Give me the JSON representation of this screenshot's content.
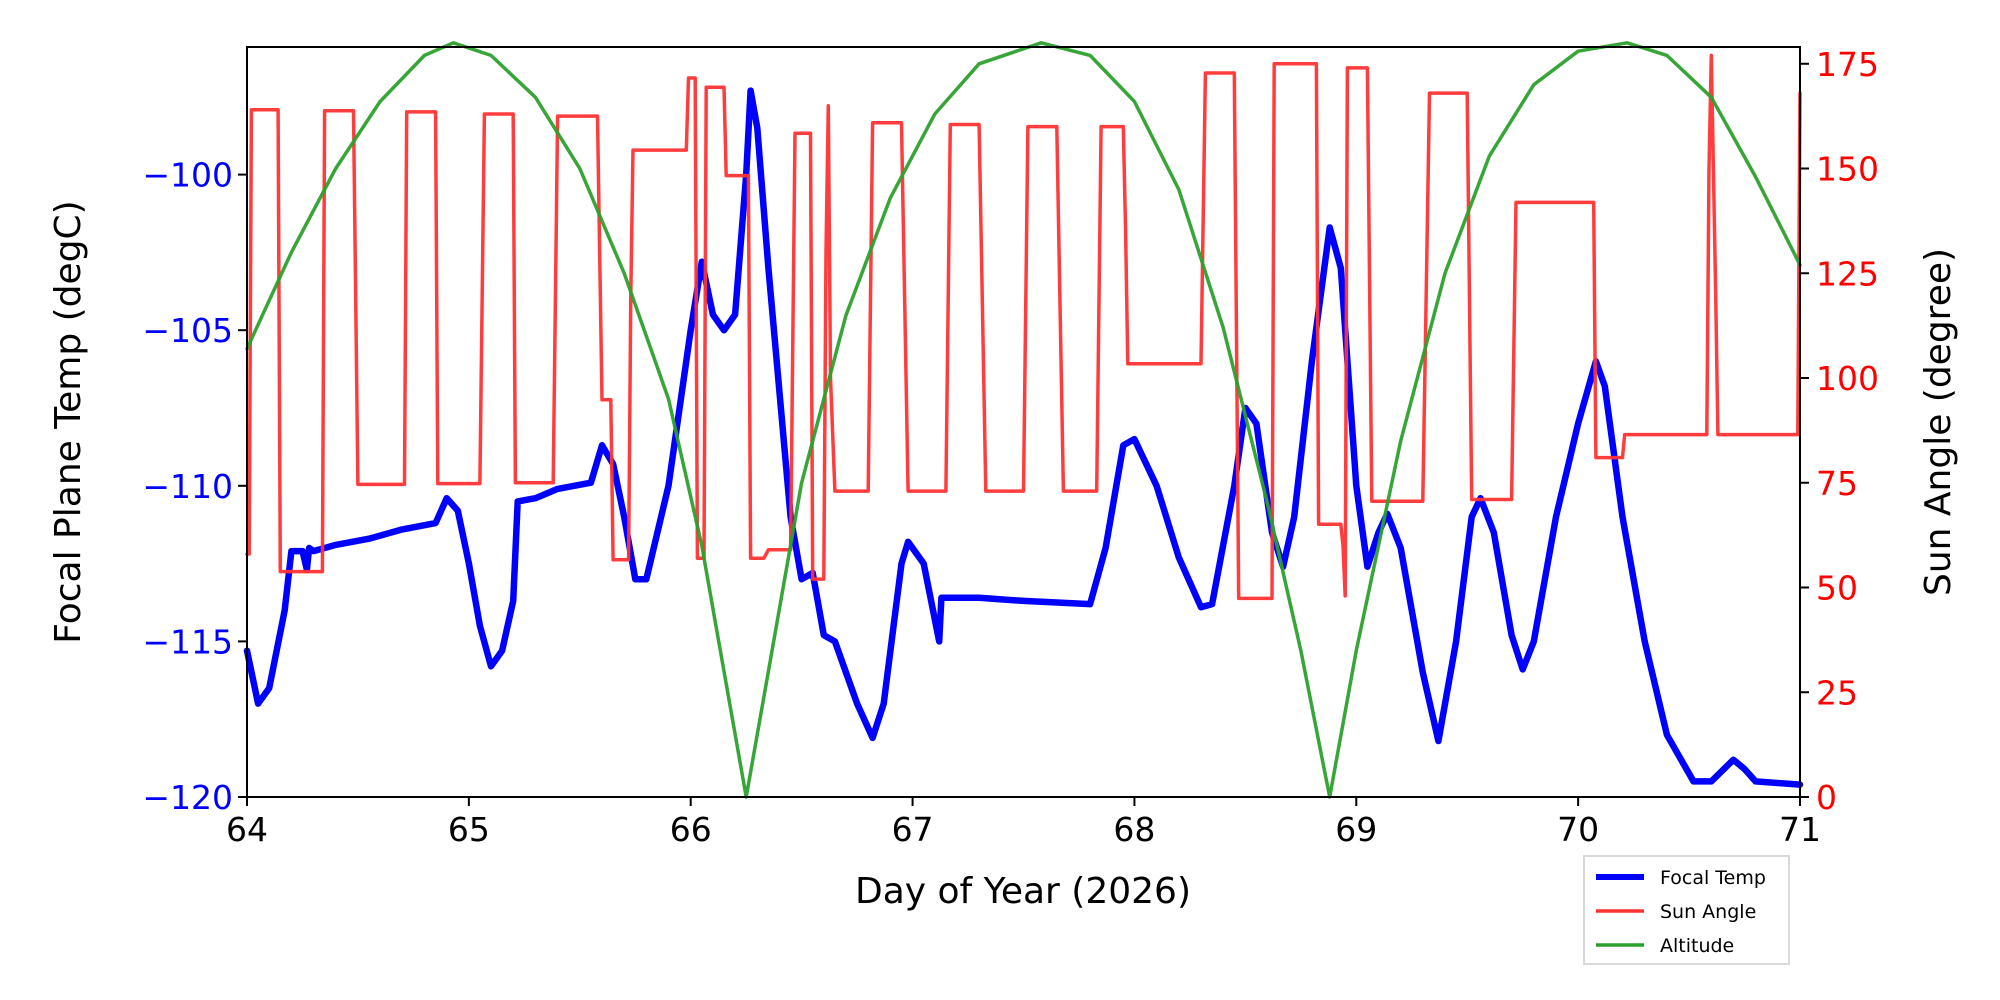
{
  "chart_data": {
    "type": "line",
    "xlabel": "Day of Year (2026)",
    "ylabel_left": "Focal Plane Temp (degC)",
    "ylabel_right": "Sun Angle (degree)",
    "xlim": [
      64,
      71
    ],
    "ylim_left": [
      -120,
      -95.9
    ],
    "ylim_right": [
      0,
      179
    ],
    "xticks": [
      "64",
      "65",
      "66",
      "67",
      "68",
      "69",
      "70",
      "71"
    ],
    "yticks_left": [
      "-120",
      "-115",
      "-110",
      "-105",
      "-100"
    ],
    "yticks_right": [
      "0",
      "25",
      "50",
      "75",
      "100",
      "125",
      "150",
      "175"
    ],
    "grid": false,
    "legend_placement": "below-right",
    "colors": {
      "left_axis": "#0000ff",
      "right_axis": "#ff0000"
    },
    "series": [
      {
        "name": "Focal Temp",
        "axis": "left",
        "color": "#0000ff",
        "x": [
          64.0,
          64.05,
          64.1,
          64.17,
          64.2,
          64.25,
          64.27,
          64.28,
          64.3,
          64.4,
          64.55,
          64.7,
          64.85,
          64.9,
          64.95,
          65.0,
          65.05,
          65.1,
          65.15,
          65.2,
          65.22,
          65.3,
          65.4,
          65.55,
          65.6,
          65.65,
          65.7,
          65.75,
          65.8,
          65.9,
          66.0,
          66.05,
          66.1,
          66.15,
          66.2,
          66.25,
          66.27,
          66.3,
          66.35,
          66.45,
          66.5,
          66.55,
          66.6,
          66.65,
          66.75,
          66.82,
          66.87,
          66.95,
          66.98,
          67.05,
          67.12,
          67.13,
          67.3,
          67.5,
          67.8,
          67.87,
          67.95,
          68.0,
          68.1,
          68.2,
          68.3,
          68.35,
          68.45,
          68.5,
          68.55,
          68.62,
          68.67,
          68.72,
          68.8,
          68.88,
          68.93,
          69.0,
          69.05,
          69.1,
          69.14,
          69.2,
          69.3,
          69.37,
          69.45,
          69.52,
          69.56,
          69.62,
          69.7,
          69.75,
          69.8,
          69.9,
          70.0,
          70.08,
          70.12,
          70.2,
          70.3,
          70.4,
          70.52,
          70.6,
          70.7,
          70.75,
          70.8,
          71.0
        ],
        "y": [
          -115.3,
          -117.0,
          -116.5,
          -114,
          -112.1,
          -112.1,
          -112.7,
          -112.0,
          -112.1,
          -111.9,
          -111.7,
          -111.4,
          -111.2,
          -110.4,
          -110.8,
          -112.5,
          -114.5,
          -115.8,
          -115.3,
          -113.7,
          -110.5,
          -110.4,
          -110.1,
          -109.9,
          -108.7,
          -109.3,
          -111,
          -113,
          -113,
          -110,
          -105,
          -102.8,
          -104.5,
          -105,
          -104.5,
          -100,
          -97.3,
          -98.5,
          -103,
          -111,
          -113,
          -112.8,
          -114.8,
          -115,
          -117,
          -118.1,
          -117,
          -112.5,
          -111.8,
          -112.5,
          -115,
          -113.6,
          -113.6,
          -113.7,
          -113.8,
          -112,
          -108.7,
          -108.5,
          -110,
          -112.3,
          -113.9,
          -113.8,
          -110,
          -107.5,
          -108,
          -111.5,
          -112.6,
          -111,
          -106,
          -101.7,
          -103,
          -110,
          -112.6,
          -111.5,
          -110.9,
          -112,
          -116,
          -118.2,
          -115,
          -111,
          -110.4,
          -111.5,
          -114.8,
          -115.9,
          -115,
          -111,
          -108,
          -106,
          -106.8,
          -111,
          -115,
          -118,
          -119.5,
          -119.5,
          -118.8,
          -119.1,
          -119.5,
          -119.6
        ]
      },
      {
        "name": "Sun Angle",
        "axis": "right",
        "color": "#ff3333",
        "x": [
          64.0,
          64.01,
          64.02,
          64.14,
          64.15,
          64.34,
          64.35,
          64.48,
          64.5,
          64.71,
          64.72,
          64.85,
          64.86,
          65.05,
          65.07,
          65.2,
          65.21,
          65.38,
          65.4,
          65.58,
          65.6,
          65.64,
          65.65,
          65.72,
          65.73,
          65.74,
          65.98,
          65.99,
          66.02,
          66.03,
          66.06,
          66.07,
          66.15,
          66.16,
          66.26,
          66.27,
          66.33,
          66.35,
          66.45,
          66.47,
          66.54,
          66.55,
          66.6,
          66.61,
          66.62,
          66.63,
          66.65,
          66.8,
          66.82,
          66.95,
          66.98,
          67.15,
          67.17,
          67.3,
          67.33,
          67.5,
          67.52,
          67.65,
          67.68,
          67.83,
          67.85,
          67.95,
          67.96,
          67.97,
          68.3,
          68.32,
          68.45,
          68.47,
          68.62,
          68.63,
          68.82,
          68.83,
          68.93,
          68.94,
          68.95,
          68.96,
          69.05,
          69.07,
          69.3,
          69.33,
          69.5,
          69.52,
          69.7,
          69.72,
          70.07,
          70.08,
          70.2,
          70.21,
          70.58,
          70.59,
          70.6,
          70.62,
          70.63,
          70.99,
          71.0
        ],
        "y": [
          58,
          58,
          164,
          164,
          53.8,
          53.8,
          163.8,
          163.8,
          74.6,
          74.6,
          163.5,
          163.5,
          74.8,
          74.8,
          163,
          163,
          75,
          75,
          162.5,
          162.5,
          94.8,
          94.8,
          56.6,
          56.6,
          120,
          154.4,
          154.4,
          171.6,
          171.6,
          57,
          57,
          169.4,
          169.4,
          148.3,
          148.3,
          57,
          57,
          59,
          59,
          158.4,
          158.4,
          52,
          52,
          130,
          165,
          100,
          73,
          73,
          160.9,
          160.9,
          73,
          73,
          160.5,
          160.5,
          73,
          73,
          160,
          160,
          73,
          73,
          160,
          160,
          135,
          103.4,
          103.4,
          172.8,
          172.8,
          47.4,
          47.4,
          175,
          175,
          65.1,
          65.1,
          60,
          48,
          174,
          174,
          70.6,
          70.6,
          168,
          168,
          71,
          71,
          141.9,
          141.9,
          81,
          81,
          86.5,
          86.5,
          150,
          177,
          120,
          86.5,
          86.5,
          168
        ]
      },
      {
        "name": "Altitude",
        "axis": "right",
        "color": "#2ca02c",
        "x": [
          64.0,
          64.2,
          64.4,
          64.6,
          64.8,
          64.93,
          65.1,
          65.3,
          65.5,
          65.7,
          65.9,
          66.05,
          66.15,
          66.25,
          66.35,
          66.5,
          66.7,
          66.9,
          67.1,
          67.3,
          67.58,
          67.8,
          68.0,
          68.2,
          68.4,
          68.6,
          68.75,
          68.88,
          69.0,
          69.2,
          69.4,
          69.6,
          69.8,
          70.0,
          70.22,
          70.4,
          70.6,
          70.8,
          71.0
        ],
        "y": [
          107,
          130,
          150,
          166,
          177,
          180,
          177,
          167,
          150,
          125,
          95,
          60,
          30,
          0,
          30,
          75,
          115,
          143,
          163,
          175,
          180,
          177,
          166,
          145,
          112,
          70,
          35,
          0,
          35,
          85,
          125,
          153,
          170,
          178,
          180,
          177,
          167,
          148,
          127
        ]
      }
    ]
  }
}
